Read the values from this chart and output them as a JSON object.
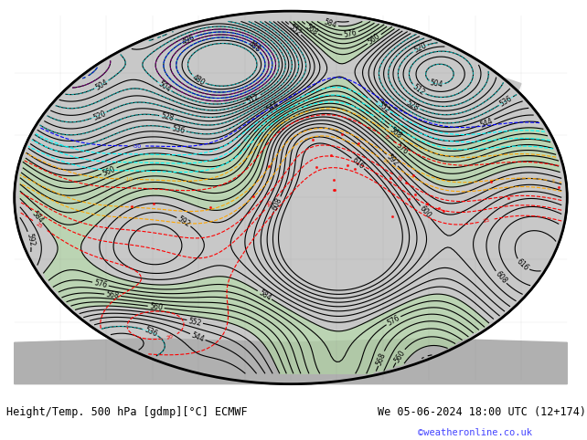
{
  "title_left": "Height/Temp. 500 hPa [gdmp][°C] ECMWF",
  "title_right": "We 05-06-2024 18:00 UTC (12+174)",
  "copyright": "©weatheronline.co.uk",
  "bg_color": "#ffffff",
  "map_bg": "#e8e8e8",
  "land_color": "#d3d3d3",
  "ocean_color": "#e0e0e0",
  "green_fill": "#b0e0a0",
  "figsize": [
    6.34,
    4.9
  ],
  "dpi": 100
}
